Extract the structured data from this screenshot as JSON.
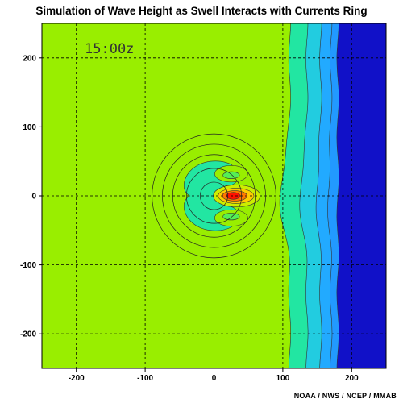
{
  "chart_data": {
    "type": "heatmap",
    "title": "Simulation of Wave Height as Swell Interacts with Currents Ring",
    "annotation": "15:00z",
    "credit": "NOAA / NWS / NCEP / MMAB",
    "xlim": [
      -250,
      250
    ],
    "ylim": [
      -250,
      250
    ],
    "x_ticks": [
      -200,
      -100,
      0,
      100,
      200
    ],
    "y_ticks": [
      -200,
      -100,
      0,
      100,
      200
    ],
    "grid": true,
    "colors": {
      "background": "#99ee00",
      "band_1": "#55ee55",
      "band_2": "#22e6a2",
      "band_3": "#22cce0",
      "band_4": "#22aaff",
      "band_5": "#2299ff",
      "deep": "#1111c8",
      "peak_high": "#ff1100",
      "peak_mid": "#ff7700",
      "peak_low": "#ffcc00"
    },
    "current_ring": {
      "center": [
        0,
        0
      ],
      "radii": [
        20,
        40,
        60,
        75,
        90
      ]
    },
    "eastern_bands_x": [
      110,
      135,
      155,
      170,
      180
    ],
    "peak": {
      "x": 30,
      "y": 0
    }
  }
}
